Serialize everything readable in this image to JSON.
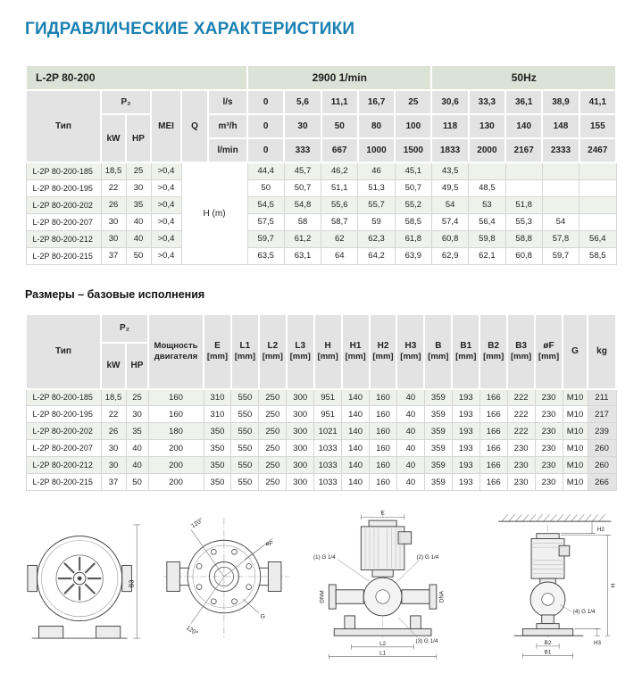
{
  "page": {
    "title": "ГИДРАВЛИЧЕСКИЕ ХАРАКТЕРИСТИКИ",
    "dimensions_section_title": "Размеры – базовые исполнения"
  },
  "colors": {
    "accent_title": "#1a80b2",
    "band_bg": "#dbe2d6",
    "header_bg": "#e3e3e3",
    "row_alt_bg": "#eef2ea",
    "kg_column_bg": "#e4e4e4"
  },
  "hydraulic_table": {
    "band": {
      "model": "L-2P 80-200",
      "speed": "2900 1/min",
      "frequency": "50Hz"
    },
    "headers": {
      "type": "Тип",
      "p2": "P₂",
      "kw": "kW",
      "hp": "HP",
      "mei": "MEI",
      "q": "Q"
    },
    "flow_rows": [
      {
        "unit": "l/s",
        "values": [
          "0",
          "5,6",
          "11,1",
          "16,7",
          "25",
          "30,6",
          "33,3",
          "36,1",
          "38,9",
          "41,1"
        ]
      },
      {
        "unit": "m³/h",
        "values": [
          "0",
          "30",
          "50",
          "80",
          "100",
          "118",
          "130",
          "140",
          "148",
          "155"
        ]
      },
      {
        "unit": "l/min",
        "values": [
          "0",
          "333",
          "667",
          "1000",
          "1500",
          "1833",
          "2000",
          "2167",
          "2333",
          "2467"
        ]
      }
    ],
    "body": {
      "merges": [
        {
          "row": 0,
          "after": 3,
          "rowspan": 6,
          "colspan": 2,
          "text": "H (m)",
          "name": "head-meters-cell"
        }
      ],
      "rows": [
        [
          "L-2P 80-200-185",
          "18,5",
          "25",
          ">0,4",
          "44,4",
          "45,7",
          "46,2",
          "46",
          "45,1",
          "43,5",
          "",
          "",
          "",
          ""
        ],
        [
          "L-2P 80-200-195",
          "22",
          "30",
          ">0,4",
          "50",
          "50,7",
          "51,1",
          "51,3",
          "50,7",
          "49,5",
          "48,5",
          "",
          "",
          ""
        ],
        [
          "L-2P 80-200-202",
          "26",
          "35",
          ">0,4",
          "54,5",
          "54,8",
          "55,6",
          "55,7",
          "55,2",
          "54",
          "53",
          "51,8",
          "",
          ""
        ],
        [
          "L-2P 80-200-207",
          "30",
          "40",
          ">0,4",
          "57,5",
          "58",
          "58,7",
          "59",
          "58,5",
          "57,4",
          "56,4",
          "55,3",
          "54",
          ""
        ],
        [
          "L-2P 80-200-212",
          "30",
          "40",
          ">0,4",
          "59,7",
          "61,2",
          "62",
          "62,3",
          "61,8",
          "60,8",
          "59,8",
          "58,8",
          "57,8",
          "56,4"
        ],
        [
          "L-2P 80-200-215",
          "37",
          "50",
          ">0,4",
          "63,5",
          "63,1",
          "64",
          "64,2",
          "63,9",
          "62,9",
          "62,1",
          "60,8",
          "59,7",
          "58,5"
        ]
      ]
    }
  },
  "dimensions_table": {
    "headers": {
      "type": "Тип",
      "p2": "P₂",
      "kw": "kW",
      "hp": "HP",
      "power": "Мощность двигателя",
      "dims": [
        {
          "name": "E",
          "unit": "[mm]"
        },
        {
          "name": "L1",
          "unit": "[mm]"
        },
        {
          "name": "L2",
          "unit": "[mm]"
        },
        {
          "name": "L3",
          "unit": "[mm]"
        },
        {
          "name": "H",
          "unit": "[mm]"
        },
        {
          "name": "H1",
          "unit": "[mm]"
        },
        {
          "name": "H2",
          "unit": "[mm]"
        },
        {
          "name": "H3",
          "unit": "[mm]"
        },
        {
          "name": "B",
          "unit": "[mm]"
        },
        {
          "name": "B1",
          "unit": "[mm]"
        },
        {
          "name": "B2",
          "unit": "[mm]"
        },
        {
          "name": "B3",
          "unit": "[mm]"
        },
        {
          "name": "øF",
          "unit": "[mm]"
        }
      ],
      "g": "G",
      "kg": "kg"
    },
    "body": {
      "rows": [
        [
          "L-2P 80-200-185",
          "18,5",
          "25",
          "160",
          "310",
          "550",
          "250",
          "300",
          "951",
          "140",
          "160",
          "40",
          "359",
          "193",
          "166",
          "222",
          "230",
          "M10",
          "211"
        ],
        [
          "L-2P 80-200-195",
          "22",
          "30",
          "160",
          "310",
          "550",
          "250",
          "300",
          "951",
          "140",
          "160",
          "40",
          "359",
          "193",
          "166",
          "222",
          "230",
          "M10",
          "217"
        ],
        [
          "L-2P 80-200-202",
          "26",
          "35",
          "180",
          "350",
          "550",
          "250",
          "300",
          "1021",
          "140",
          "160",
          "40",
          "359",
          "193",
          "166",
          "222",
          "230",
          "M10",
          "239"
        ],
        [
          "L-2P 80-200-207",
          "30",
          "40",
          "200",
          "350",
          "550",
          "250",
          "300",
          "1033",
          "140",
          "160",
          "40",
          "359",
          "193",
          "166",
          "230",
          "230",
          "M10",
          "260"
        ],
        [
          "L-2P 80-200-212",
          "30",
          "40",
          "200",
          "350",
          "550",
          "250",
          "300",
          "1033",
          "140",
          "160",
          "40",
          "359",
          "193",
          "166",
          "230",
          "230",
          "M10",
          "260"
        ],
        [
          "L-2P 80-200-215",
          "37",
          "50",
          "200",
          "350",
          "550",
          "250",
          "300",
          "1033",
          "140",
          "160",
          "40",
          "359",
          "193",
          "166",
          "230",
          "230",
          "M10",
          "266"
        ]
      ]
    }
  },
  "drawings": {
    "front_view": {
      "b3": "B3"
    },
    "top_view": {
      "angle_top": "120°",
      "angle_bottom": "120°",
      "flange_diameter": "øF",
      "thread": "G"
    },
    "inline_view": {
      "e": "E",
      "plug1": "(1) G 1/4",
      "plug2": "(2) G 1/4",
      "plug3": "(3) G 1/4",
      "dnm": "DNM",
      "dna": "DNA",
      "l1": "L1",
      "l2": "L2"
    },
    "side_view": {
      "h2": "H2",
      "h": "H",
      "h3": "H3",
      "plug4": "(4) G 1/4",
      "b2": "B2",
      "b1": "B1"
    }
  }
}
